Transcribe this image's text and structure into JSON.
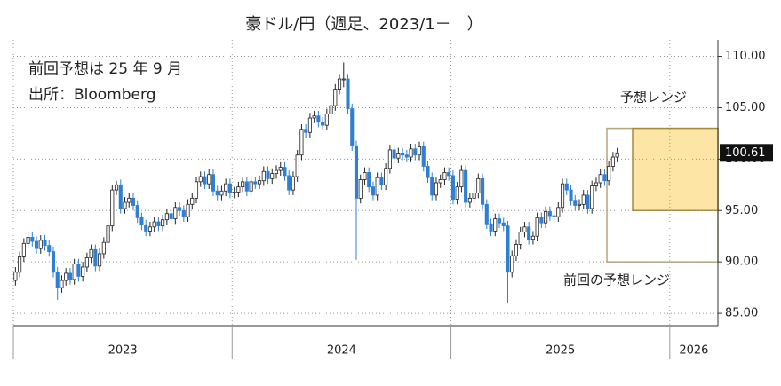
{
  "chart_data": {
    "type": "candlestick",
    "title": "豪ドル/円（週足、2023/1－　）",
    "annotations": [
      "前回予想は 25 年 9 月",
      "出所：Bloomberg"
    ],
    "ranges": [
      {
        "label": "前回の予想レンジ",
        "low": 90,
        "high": 103
      },
      {
        "label": "予想レンジ",
        "low": 95,
        "high": 103
      }
    ],
    "up_color": "#ffffff",
    "down_color": "#2e7fd6",
    "range_color": "#fde5a5",
    "xlim": [
      2023,
      2026.22
    ],
    "xticks": [
      2023,
      2024,
      2025,
      2026
    ],
    "ylim": [
      83.8,
      111.6
    ],
    "yticks": [
      {
        "value": 85,
        "label": "85.00"
      },
      {
        "value": 90,
        "label": "90.00"
      },
      {
        "value": 95,
        "label": "95.00"
      },
      {
        "value": 100,
        "label": "100.00"
      },
      {
        "value": 105,
        "label": "105.00"
      },
      {
        "value": 110,
        "label": "110.00"
      }
    ],
    "grid": true,
    "open": [
      88.2,
      89.0,
      90.5,
      91.8,
      92.4,
      92.0,
      91.3,
      92.1,
      91.6,
      91.0,
      89.0,
      87.5,
      88.2,
      88.9,
      88.3,
      89.8,
      88.6,
      89.5,
      90.4,
      91.2,
      89.6,
      90.8,
      91.9,
      93.5,
      97.0,
      97.5,
      95.2,
      95.8,
      96.2,
      95.5,
      94.3,
      93.6,
      93.0,
      93.4,
      93.9,
      93.5,
      94.1,
      94.7,
      94.2,
      95.3,
      95.0,
      94.4,
      95.6,
      96.2,
      97.8,
      98.3,
      97.6,
      98.5,
      96.9,
      96.5,
      96.9,
      97.6,
      96.7,
      96.8,
      97.3,
      97.8,
      96.9,
      97.8,
      97.6,
      97.9,
      98.8,
      98.1,
      98.6,
      98.9,
      99.2,
      98.4,
      97.0,
      98.3,
      100.4,
      102.9,
      102.6,
      104.0,
      104.2,
      103.6,
      103.3,
      104.4,
      105.2,
      106.8,
      107.8,
      107.8,
      104.9,
      101.3,
      96.2,
      98.0,
      98.7,
      97.3,
      96.5,
      98.2,
      97.5,
      99.1,
      100.9,
      100.1,
      100.6,
      100.4,
      100.2,
      101.0,
      100.4,
      101.2,
      99.3,
      98.2,
      96.5,
      97.7,
      98.0,
      98.7,
      98.4,
      96.1,
      97.3,
      98.9,
      95.8,
      96.2,
      96.7,
      98.1,
      95.6,
      93.7,
      93.0,
      94.2,
      93.8,
      93.5,
      89.0,
      90.6,
      91.7,
      92.9,
      93.4,
      92.2,
      92.5,
      94.3,
      93.8,
      94.9,
      94.5,
      94.4,
      95.3,
      97.6,
      97.0,
      96.0,
      95.5,
      95.6,
      96.5,
      95.2,
      97.4,
      97.7,
      98.5,
      97.9,
      99.3,
      100.2
    ],
    "high": [
      89.5,
      91.0,
      92.3,
      92.9,
      92.9,
      92.5,
      92.6,
      92.6,
      92.1,
      91.5,
      89.5,
      88.7,
      89.4,
      89.4,
      90.3,
      90.3,
      90.0,
      90.9,
      91.7,
      91.7,
      91.3,
      92.4,
      94.0,
      97.5,
      97.9,
      98.0,
      96.3,
      96.7,
      96.7,
      96.0,
      94.8,
      94.1,
      93.9,
      94.4,
      94.4,
      94.6,
      95.2,
      95.2,
      95.8,
      95.8,
      95.5,
      96.1,
      96.7,
      98.3,
      98.8,
      98.8,
      99.0,
      99.0,
      97.4,
      97.4,
      98.1,
      98.1,
      97.3,
      97.8,
      98.3,
      98.3,
      98.3,
      98.3,
      98.4,
      99.3,
      99.3,
      99.1,
      99.4,
      99.7,
      99.7,
      98.9,
      98.8,
      100.9,
      103.4,
      103.4,
      104.5,
      104.7,
      104.7,
      104.1,
      104.9,
      105.7,
      107.3,
      108.3,
      109.4,
      108.3,
      105.4,
      101.8,
      98.5,
      99.2,
      99.2,
      97.8,
      98.7,
      98.7,
      99.6,
      101.4,
      101.4,
      101.1,
      101.1,
      100.9,
      101.5,
      101.5,
      101.7,
      101.7,
      99.8,
      98.7,
      98.2,
      98.5,
      99.2,
      99.2,
      98.9,
      97.8,
      99.4,
      99.4,
      96.7,
      97.2,
      98.6,
      98.6,
      96.1,
      94.2,
      94.7,
      94.7,
      94.3,
      94.0,
      91.1,
      92.2,
      93.4,
      93.9,
      93.9,
      93.0,
      94.8,
      94.8,
      95.4,
      95.4,
      95.0,
      95.8,
      98.1,
      98.1,
      97.5,
      96.5,
      96.1,
      97.0,
      97.0,
      97.9,
      98.2,
      99.0,
      99.0,
      99.8,
      100.7,
      101.1
    ],
    "low": [
      87.7,
      88.5,
      90.0,
      91.3,
      91.5,
      90.8,
      90.8,
      91.1,
      90.5,
      88.5,
      86.3,
      87.0,
      87.7,
      87.8,
      87.8,
      88.1,
      88.1,
      89.0,
      89.9,
      89.1,
      89.1,
      90.3,
      91.4,
      93.0,
      96.5,
      94.7,
      94.7,
      95.3,
      95.0,
      93.8,
      93.1,
      92.5,
      92.5,
      92.9,
      93.0,
      93.0,
      93.6,
      93.7,
      93.7,
      94.5,
      93.9,
      93.9,
      95.1,
      95.7,
      97.3,
      97.1,
      97.1,
      96.4,
      96.0,
      96.0,
      96.4,
      96.2,
      96.2,
      96.3,
      96.8,
      96.4,
      96.4,
      97.1,
      97.1,
      97.4,
      97.6,
      97.6,
      98.1,
      98.4,
      97.9,
      96.5,
      96.5,
      97.8,
      99.9,
      102.1,
      102.1,
      103.5,
      103.1,
      102.8,
      102.8,
      103.9,
      104.7,
      106.3,
      107.0,
      104.4,
      100.8,
      90.2,
      95.7,
      97.5,
      96.8,
      96.0,
      96.0,
      97.0,
      97.0,
      98.6,
      99.6,
      99.6,
      99.9,
      99.7,
      99.7,
      99.9,
      99.9,
      98.8,
      97.7,
      96.0,
      96.0,
      97.2,
      97.5,
      97.9,
      95.6,
      95.6,
      96.8,
      95.3,
      95.3,
      95.7,
      96.2,
      95.1,
      93.2,
      92.5,
      92.5,
      93.3,
      93.0,
      86.0,
      88.5,
      90.1,
      91.2,
      92.4,
      91.7,
      91.7,
      92.0,
      93.3,
      93.3,
      94.0,
      93.9,
      93.9,
      94.8,
      96.5,
      95.5,
      95.0,
      95.0,
      95.1,
      94.7,
      94.7,
      96.9,
      97.2,
      97.4,
      97.4,
      98.8,
      99.7
    ],
    "close": [
      89.0,
      90.5,
      91.8,
      92.4,
      92.0,
      91.3,
      92.1,
      91.6,
      91.0,
      89.0,
      87.5,
      88.2,
      88.9,
      88.3,
      89.8,
      88.6,
      89.5,
      90.4,
      91.2,
      89.6,
      90.8,
      91.9,
      93.5,
      97.0,
      97.5,
      95.2,
      95.8,
      96.2,
      95.5,
      94.3,
      93.6,
      93.0,
      93.4,
      93.9,
      93.5,
      94.1,
      94.7,
      94.2,
      95.3,
      95.0,
      94.4,
      95.6,
      96.2,
      97.8,
      98.3,
      97.6,
      98.5,
      96.9,
      96.5,
      96.9,
      97.6,
      96.7,
      96.8,
      97.3,
      97.8,
      96.9,
      97.8,
      97.6,
      97.9,
      98.8,
      98.1,
      98.6,
      98.9,
      99.2,
      98.4,
      97.0,
      98.3,
      100.4,
      102.9,
      102.6,
      104.0,
      104.2,
      103.6,
      103.3,
      104.4,
      105.2,
      106.8,
      107.8,
      107.8,
      104.9,
      101.3,
      96.2,
      98.0,
      98.7,
      97.3,
      96.5,
      98.2,
      97.5,
      99.1,
      100.9,
      100.1,
      100.6,
      100.4,
      100.2,
      101.0,
      100.4,
      101.2,
      99.3,
      98.2,
      96.5,
      97.7,
      98.0,
      98.7,
      98.4,
      96.1,
      97.3,
      98.9,
      95.8,
      96.2,
      96.7,
      98.1,
      95.6,
      93.7,
      93.0,
      94.2,
      93.8,
      93.5,
      89.0,
      90.6,
      91.7,
      92.9,
      93.4,
      92.2,
      92.5,
      94.3,
      93.8,
      94.9,
      94.5,
      94.4,
      95.3,
      97.6,
      97.0,
      96.0,
      95.5,
      95.6,
      96.5,
      95.2,
      97.4,
      97.7,
      98.5,
      97.9,
      99.3,
      100.2,
      100.61
    ]
  }
}
